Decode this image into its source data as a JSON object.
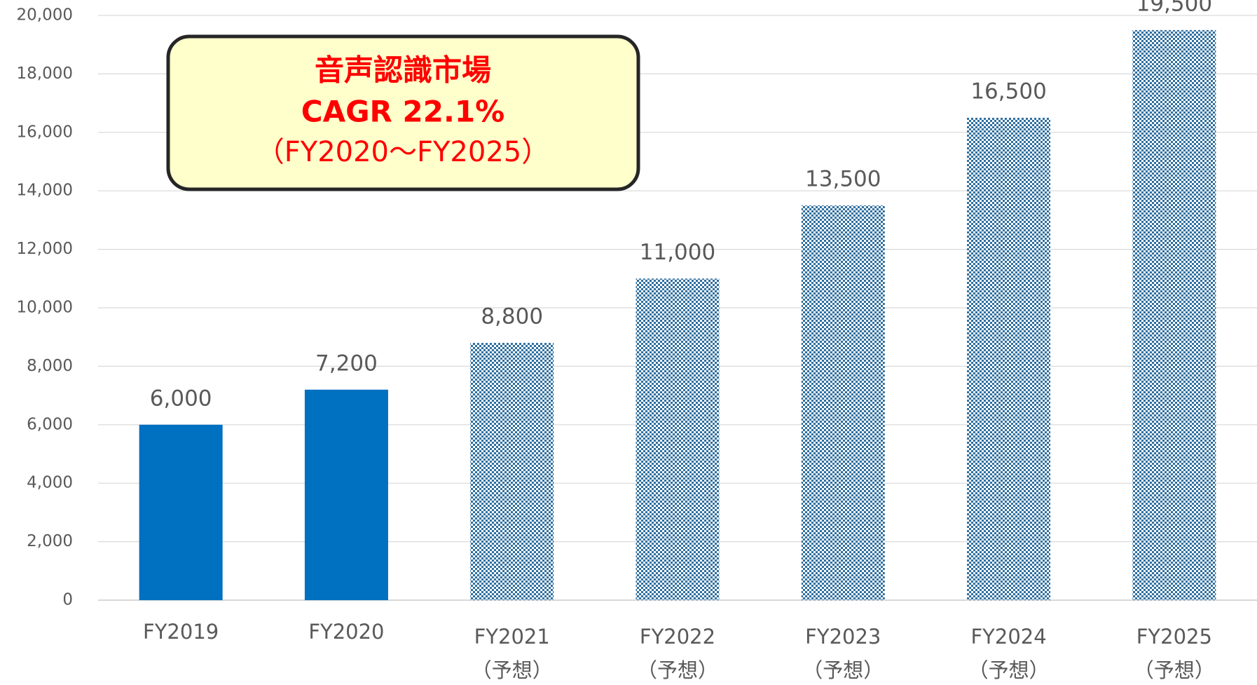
{
  "chart_data": {
    "type": "bar",
    "categories": [
      "FY2019",
      "FY2020",
      "FY2021",
      "FY2022",
      "FY2023",
      "FY2024",
      "FY2025"
    ],
    "category_notes": [
      null,
      null,
      "（予想）",
      "（予想）",
      "（予想）",
      "（予想）",
      "（予想）"
    ],
    "values": [
      6000,
      7200,
      8800,
      11000,
      13500,
      16500,
      19500
    ],
    "value_labels": [
      "6,000",
      "7,200",
      "8,800",
      "11,000",
      "13,500",
      "16,500",
      "19,500"
    ],
    "color": "#0070c0",
    "patterned": [
      false,
      false,
      true,
      true,
      true,
      true,
      true
    ],
    "ylim": [
      0,
      20000
    ],
    "yticks": [
      0,
      {
        "value": 2000,
        "label": "2,000"
      },
      {
        "value": 4000,
        "label": "4,000"
      },
      {
        "value": 6000,
        "label": "6,000"
      },
      {
        "value": 8000,
        "label": "8,000"
      },
      {
        "value": 10000,
        "label": "10,000"
      },
      {
        "value": 12000,
        "label": "12,000"
      },
      {
        "value": 14000,
        "label": "14,000"
      },
      {
        "value": 16000,
        "label": "16,000"
      },
      {
        "value": 18000,
        "label": "18,000"
      },
      {
        "value": 20000,
        "label": "20,000"
      }
    ],
    "grid": true,
    "annotation": {
      "lines": [
        "音声認識市場",
        "CAGR  22.1%",
        "（FY2020～FY2025）"
      ]
    }
  }
}
